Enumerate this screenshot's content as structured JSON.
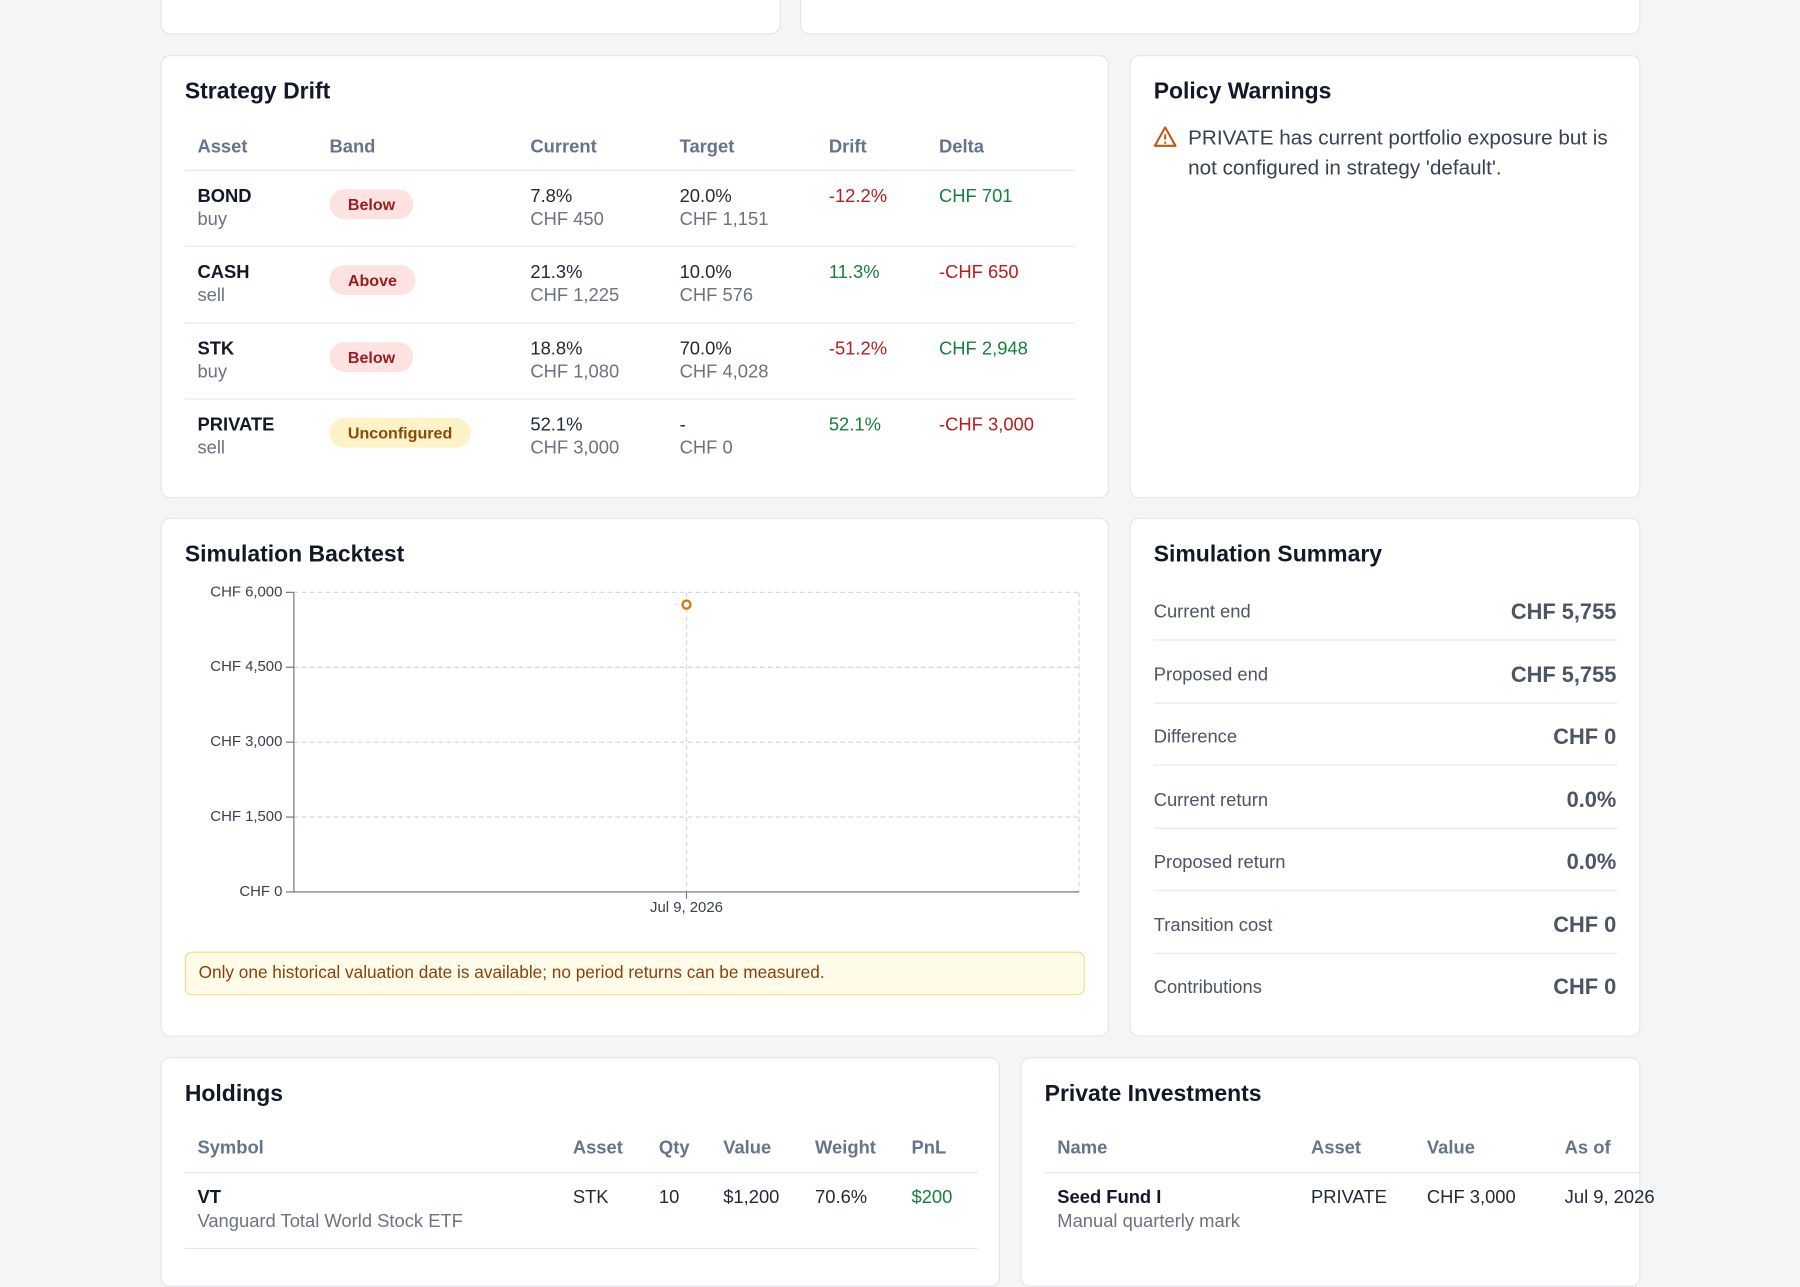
{
  "strategy_drift": {
    "title": "Strategy Drift",
    "columns": [
      "Asset",
      "Band",
      "Current",
      "Target",
      "Drift",
      "Delta"
    ],
    "rows": [
      {
        "asset": "BOND",
        "action": "buy",
        "band": "Below",
        "current_pct": "7.8%",
        "current_value": "CHF 450",
        "target_pct": "20.0%",
        "target_value": "CHF 1,151",
        "drift": "-12.2%",
        "delta": "CHF 701"
      },
      {
        "asset": "CASH",
        "action": "sell",
        "band": "Above",
        "current_pct": "21.3%",
        "current_value": "CHF 1,225",
        "target_pct": "10.0%",
        "target_value": "CHF 576",
        "drift": "11.3%",
        "delta": "-CHF 650"
      },
      {
        "asset": "STK",
        "action": "buy",
        "band": "Below",
        "current_pct": "18.8%",
        "current_value": "CHF 1,080",
        "target_pct": "70.0%",
        "target_value": "CHF 4,028",
        "drift": "-51.2%",
        "delta": "CHF 2,948"
      },
      {
        "asset": "PRIVATE",
        "action": "sell",
        "band": "Unconfigured",
        "current_pct": "52.1%",
        "current_value": "CHF 3,000",
        "target_pct": "-",
        "target_value": "CHF 0",
        "drift": "52.1%",
        "delta": "-CHF 3,000"
      }
    ]
  },
  "policy_warnings": {
    "title": "Policy Warnings",
    "items": [
      "PRIVATE has current portfolio exposure but is not configured in strategy 'default'."
    ]
  },
  "simulation_backtest": {
    "title": "Simulation Backtest",
    "type": "line",
    "x": [
      "Jul 9, 2026"
    ],
    "series": [
      {
        "color": "#d97706",
        "values": [
          5755
        ]
      }
    ],
    "ylim": [
      0,
      6000
    ],
    "yticks": [
      {
        "value": 0,
        "label": "CHF 0"
      },
      {
        "value": 1500,
        "label": "CHF 1,500"
      },
      {
        "value": 3000,
        "label": "CHF 3,000"
      },
      {
        "value": 4500,
        "label": "CHF 4,500"
      },
      {
        "value": 6000,
        "label": "CHF 6,000"
      }
    ],
    "grid": true,
    "note": "Only one historical valuation date is available; no period returns can be measured."
  },
  "simulation_summary": {
    "title": "Simulation Summary",
    "rows": [
      {
        "label": "Current end",
        "value": "CHF 5,755"
      },
      {
        "label": "Proposed end",
        "value": "CHF 5,755"
      },
      {
        "label": "Difference",
        "value": "CHF 0"
      },
      {
        "label": "Current return",
        "value": "0.0%"
      },
      {
        "label": "Proposed return",
        "value": "0.0%"
      },
      {
        "label": "Transition cost",
        "value": "CHF 0"
      },
      {
        "label": "Contributions",
        "value": "CHF 0"
      }
    ]
  },
  "holdings": {
    "title": "Holdings",
    "columns": [
      "Symbol",
      "Asset",
      "Qty",
      "Value",
      "Weight",
      "PnL"
    ],
    "rows": [
      {
        "symbol": "VT",
        "name": "Vanguard Total World Stock ETF",
        "asset": "STK",
        "qty": "10",
        "value": "$1,200",
        "weight": "70.6%",
        "pnl": "$200"
      }
    ]
  },
  "private_investments": {
    "title": "Private Investments",
    "columns": [
      "Name",
      "Asset",
      "Value",
      "As of"
    ],
    "rows": [
      {
        "name": "Seed Fund I",
        "note": "Manual quarterly mark",
        "asset": "PRIVATE",
        "value": "CHF 3,000",
        "as_of": "Jul 9, 2026"
      }
    ]
  }
}
